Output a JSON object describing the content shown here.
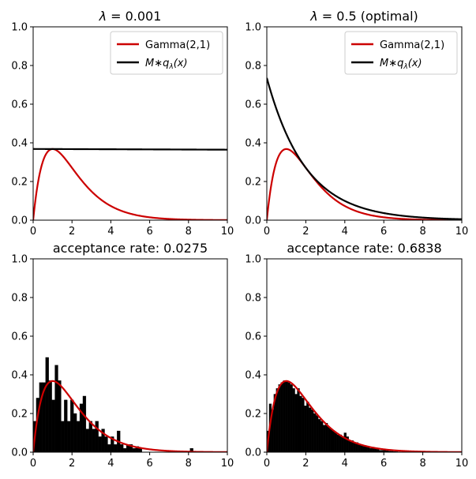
{
  "figure": {
    "colors": {
      "gamma": "#cc0000",
      "envelope": "#000000",
      "hist": "#000000"
    }
  },
  "chart_data": [
    {
      "type": "line",
      "title_parts": [
        "λ",
        " = 0.001"
      ],
      "xlim": [
        0,
        10
      ],
      "ylim": [
        0,
        1
      ],
      "xticks": [
        "0",
        "2",
        "4",
        "6",
        "8",
        "10"
      ],
      "yticks": [
        "0.0",
        "0.2",
        "0.4",
        "0.6",
        "0.8",
        "1.0"
      ],
      "legend_position": "upper right",
      "legend": [
        "Gamma(2,1)",
        "M∗q",
        "λ",
        "(x)"
      ],
      "series": [
        {
          "name": "Gamma(2,1)",
          "kind": "gamma_pdf",
          "shape": 2,
          "rate": 1
        },
        {
          "name": "M∗qλ(x)",
          "kind": "exp_envelope",
          "lambda": 0.001
        }
      ]
    },
    {
      "type": "line",
      "title_parts": [
        "λ",
        " = 0.5 (optimal)"
      ],
      "xlim": [
        0,
        10
      ],
      "ylim": [
        0,
        1
      ],
      "xticks": [
        "0",
        "2",
        "4",
        "6",
        "8",
        "10"
      ],
      "yticks": [
        "0.0",
        "0.2",
        "0.4",
        "0.6",
        "0.8",
        "1.0"
      ],
      "legend_position": "upper right",
      "legend": [
        "Gamma(2,1)",
        "M∗q",
        "λ",
        "(x)"
      ],
      "series": [
        {
          "name": "Gamma(2,1)",
          "kind": "gamma_pdf",
          "shape": 2,
          "rate": 1
        },
        {
          "name": "M∗qλ(x)",
          "kind": "exp_envelope",
          "lambda": 0.5
        }
      ]
    },
    {
      "type": "bar",
      "title": "acceptance rate: 0.0275",
      "xlim": [
        0,
        10
      ],
      "ylim": [
        0,
        1
      ],
      "xticks": [
        "0",
        "2",
        "4",
        "6",
        "8",
        "10"
      ],
      "yticks": [
        "0.0",
        "0.2",
        "0.4",
        "0.6",
        "0.8",
        "1.0"
      ],
      "bin_width": 0.16,
      "bins": [
        {
          "x": 0.0,
          "h": 0.16
        },
        {
          "x": 0.16,
          "h": 0.28
        },
        {
          "x": 0.32,
          "h": 0.36
        },
        {
          "x": 0.48,
          "h": 0.36
        },
        {
          "x": 0.64,
          "h": 0.49
        },
        {
          "x": 0.8,
          "h": 0.37
        },
        {
          "x": 0.96,
          "h": 0.27
        },
        {
          "x": 1.12,
          "h": 0.45
        },
        {
          "x": 1.28,
          "h": 0.37
        },
        {
          "x": 1.44,
          "h": 0.16
        },
        {
          "x": 1.6,
          "h": 0.27
        },
        {
          "x": 1.76,
          "h": 0.16
        },
        {
          "x": 1.92,
          "h": 0.27
        },
        {
          "x": 2.08,
          "h": 0.2
        },
        {
          "x": 2.24,
          "h": 0.16
        },
        {
          "x": 2.4,
          "h": 0.25
        },
        {
          "x": 2.56,
          "h": 0.29
        },
        {
          "x": 2.72,
          "h": 0.12
        },
        {
          "x": 2.88,
          "h": 0.16
        },
        {
          "x": 3.04,
          "h": 0.12
        },
        {
          "x": 3.2,
          "h": 0.16
        },
        {
          "x": 3.36,
          "h": 0.08
        },
        {
          "x": 3.52,
          "h": 0.12
        },
        {
          "x": 3.68,
          "h": 0.08
        },
        {
          "x": 3.84,
          "h": 0.04
        },
        {
          "x": 4.0,
          "h": 0.08
        },
        {
          "x": 4.16,
          "h": 0.04
        },
        {
          "x": 4.32,
          "h": 0.11
        },
        {
          "x": 4.48,
          "h": 0.04
        },
        {
          "x": 4.64,
          "h": 0.02
        },
        {
          "x": 4.8,
          "h": 0.04
        },
        {
          "x": 4.96,
          "h": 0.04
        },
        {
          "x": 5.12,
          "h": 0.02
        },
        {
          "x": 5.28,
          "h": 0.03
        },
        {
          "x": 5.44,
          "h": 0.02
        },
        {
          "x": 8.08,
          "h": 0.02
        }
      ],
      "overlay": {
        "name": "Gamma(2,1)",
        "kind": "gamma_pdf",
        "shape": 2,
        "rate": 1
      }
    },
    {
      "type": "bar",
      "title": "acceptance rate: 0.6838",
      "xlim": [
        0,
        10
      ],
      "ylim": [
        0,
        1
      ],
      "xticks": [
        "0",
        "2",
        "4",
        "6",
        "8",
        "10"
      ],
      "yticks": [
        "0.0",
        "0.2",
        "0.4",
        "0.6",
        "0.8",
        "1.0"
      ],
      "bin_width": 0.12,
      "bins": [
        {
          "x": 0.0,
          "h": 0.11
        },
        {
          "x": 0.12,
          "h": 0.25
        },
        {
          "x": 0.24,
          "h": 0.22
        },
        {
          "x": 0.36,
          "h": 0.3
        },
        {
          "x": 0.48,
          "h": 0.33
        },
        {
          "x": 0.6,
          "h": 0.35
        },
        {
          "x": 0.72,
          "h": 0.36
        },
        {
          "x": 0.84,
          "h": 0.37
        },
        {
          "x": 0.96,
          "h": 0.37
        },
        {
          "x": 1.08,
          "h": 0.36
        },
        {
          "x": 1.2,
          "h": 0.35
        },
        {
          "x": 1.32,
          "h": 0.33
        },
        {
          "x": 1.44,
          "h": 0.3
        },
        {
          "x": 1.56,
          "h": 0.33
        },
        {
          "x": 1.68,
          "h": 0.29
        },
        {
          "x": 1.8,
          "h": 0.28
        },
        {
          "x": 1.92,
          "h": 0.24
        },
        {
          "x": 2.04,
          "h": 0.26
        },
        {
          "x": 2.16,
          "h": 0.23
        },
        {
          "x": 2.28,
          "h": 0.22
        },
        {
          "x": 2.4,
          "h": 0.2
        },
        {
          "x": 2.52,
          "h": 0.19
        },
        {
          "x": 2.64,
          "h": 0.17
        },
        {
          "x": 2.76,
          "h": 0.16
        },
        {
          "x": 2.88,
          "h": 0.14
        },
        {
          "x": 3.0,
          "h": 0.15
        },
        {
          "x": 3.12,
          "h": 0.13
        },
        {
          "x": 3.24,
          "h": 0.12
        },
        {
          "x": 3.36,
          "h": 0.11
        },
        {
          "x": 3.48,
          "h": 0.1
        },
        {
          "x": 3.6,
          "h": 0.09
        },
        {
          "x": 3.72,
          "h": 0.09
        },
        {
          "x": 3.84,
          "h": 0.08
        },
        {
          "x": 3.96,
          "h": 0.1
        },
        {
          "x": 4.08,
          "h": 0.08
        },
        {
          "x": 4.2,
          "h": 0.06
        },
        {
          "x": 4.32,
          "h": 0.06
        },
        {
          "x": 4.44,
          "h": 0.05
        },
        {
          "x": 4.56,
          "h": 0.05
        },
        {
          "x": 4.68,
          "h": 0.04
        },
        {
          "x": 4.8,
          "h": 0.04
        },
        {
          "x": 4.92,
          "h": 0.03
        },
        {
          "x": 5.04,
          "h": 0.03
        },
        {
          "x": 5.16,
          "h": 0.03
        },
        {
          "x": 5.28,
          "h": 0.02
        },
        {
          "x": 5.4,
          "h": 0.02
        },
        {
          "x": 5.52,
          "h": 0.02
        },
        {
          "x": 5.64,
          "h": 0.015
        },
        {
          "x": 5.76,
          "h": 0.01
        },
        {
          "x": 5.88,
          "h": 0.01
        },
        {
          "x": 6.0,
          "h": 0.01
        },
        {
          "x": 6.12,
          "h": 0.008
        },
        {
          "x": 6.24,
          "h": 0.006
        },
        {
          "x": 6.36,
          "h": 0.005
        },
        {
          "x": 6.48,
          "h": 0.004
        },
        {
          "x": 6.6,
          "h": 0.003
        },
        {
          "x": 6.72,
          "h": 0.002
        }
      ],
      "overlay": {
        "name": "Gamma(2,1)",
        "kind": "gamma_pdf",
        "shape": 2,
        "rate": 1
      }
    }
  ]
}
